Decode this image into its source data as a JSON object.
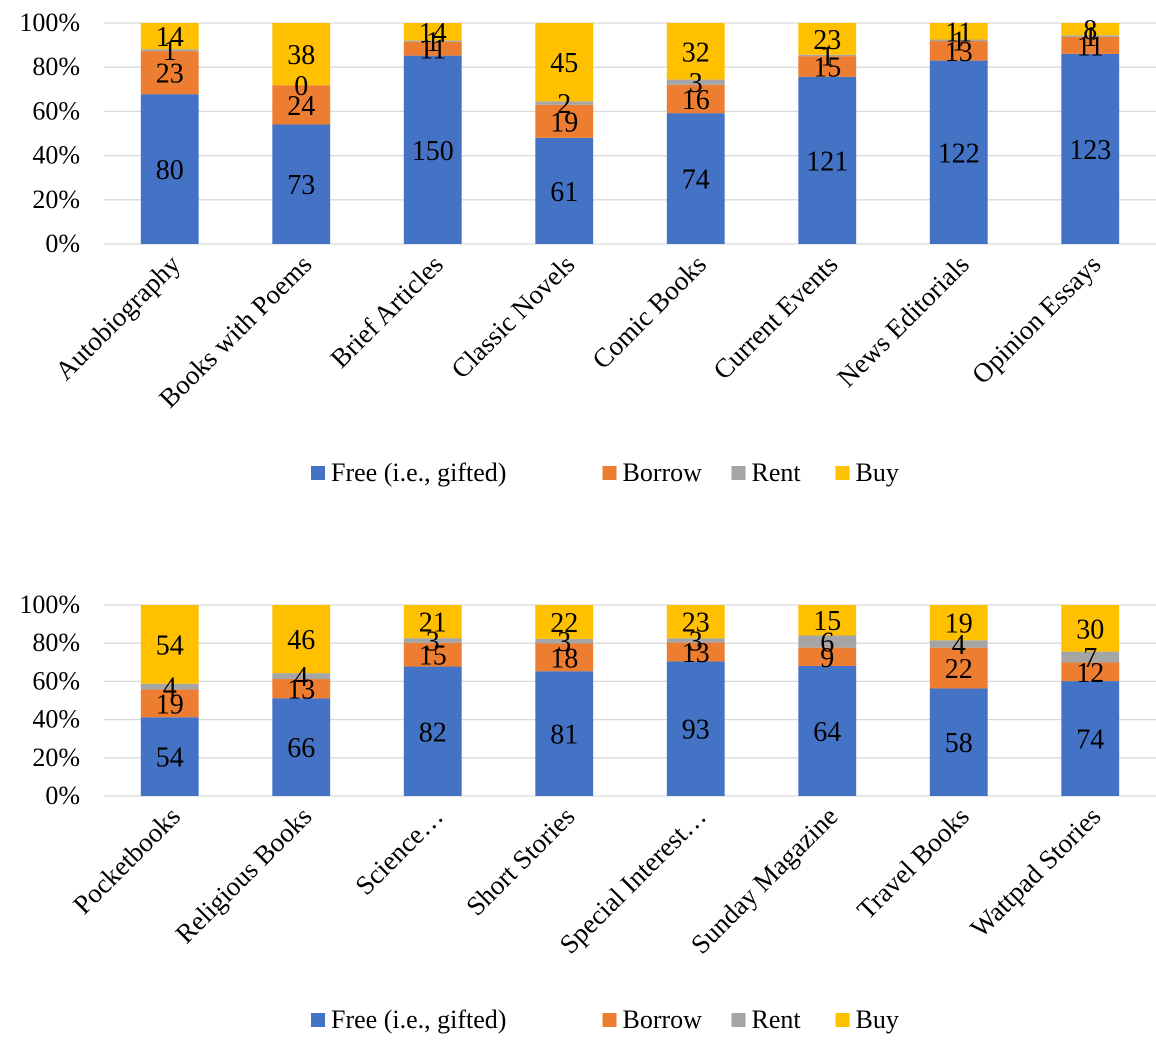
{
  "chart_data": [
    {
      "type": "bar",
      "stacking": "percent",
      "categories": [
        "Autobiography",
        "Books with Poems",
        "Brief Articles",
        "Classic Novels",
        "Comic Books",
        "Current Events",
        "News Editorials",
        "Opinion Essays"
      ],
      "series": [
        {
          "name": "Free (i.e., gifted)",
          "color": "#4472C4",
          "values": [
            80,
            73,
            150,
            61,
            74,
            121,
            122,
            123
          ]
        },
        {
          "name": "Borrow",
          "color": "#ED7D31",
          "values": [
            23,
            24,
            11,
            19,
            16,
            15,
            13,
            11
          ]
        },
        {
          "name": "Rent",
          "color": "#A5A5A5",
          "values": [
            1,
            0,
            1,
            2,
            3,
            1,
            1,
            1
          ]
        },
        {
          "name": "Buy",
          "color": "#FFC000",
          "values": [
            14,
            38,
            14,
            45,
            32,
            23,
            11,
            8
          ]
        }
      ],
      "yticks": [
        "0%",
        "20%",
        "40%",
        "60%",
        "80%",
        "100%"
      ],
      "ylim": [
        0,
        100
      ],
      "grid": true,
      "legend": "bottom"
    },
    {
      "type": "bar",
      "stacking": "percent",
      "categories": [
        "Pocketbooks",
        "Religious Books",
        "Science…",
        "Short Stories",
        "Special Interest…",
        "Sunday Magazine",
        "Travel Books",
        "Wattpad Stories"
      ],
      "series": [
        {
          "name": "Free (i.e., gifted)",
          "color": "#4472C4",
          "values": [
            54,
            66,
            82,
            81,
            93,
            64,
            58,
            74
          ]
        },
        {
          "name": "Borrow",
          "color": "#ED7D31",
          "values": [
            19,
            13,
            15,
            18,
            13,
            9,
            22,
            12
          ]
        },
        {
          "name": "Rent",
          "color": "#A5A5A5",
          "values": [
            4,
            4,
            3,
            3,
            3,
            6,
            4,
            7
          ]
        },
        {
          "name": "Buy",
          "color": "#FFC000",
          "values": [
            54,
            46,
            21,
            22,
            23,
            15,
            19,
            30
          ]
        }
      ],
      "yticks": [
        "0%",
        "20%",
        "40%",
        "60%",
        "80%",
        "100%"
      ],
      "ylim": [
        0,
        100
      ],
      "grid": true,
      "legend": "bottom"
    }
  ]
}
